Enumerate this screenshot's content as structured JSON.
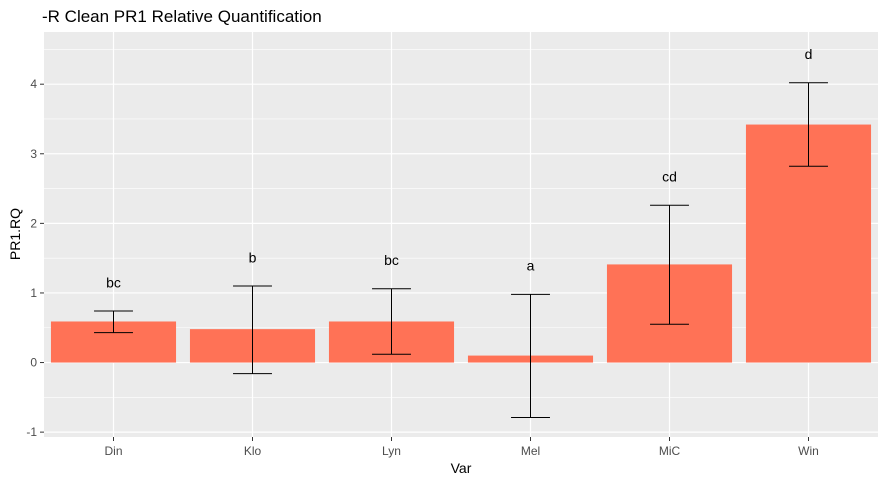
{
  "chart_data": {
    "type": "bar",
    "title": "-R Clean PR1 Relative Quantification",
    "xlabel": "Var",
    "ylabel": "PR1.RQ",
    "categories": [
      "Din",
      "Klo",
      "Lyn",
      "Mel",
      "MiC",
      "Win"
    ],
    "values": [
      0.59,
      0.48,
      0.59,
      0.1,
      1.41,
      3.42
    ],
    "error_low": [
      0.43,
      -0.16,
      0.12,
      -0.79,
      0.55,
      2.82
    ],
    "error_high": [
      0.74,
      1.1,
      1.06,
      0.98,
      2.26,
      4.02
    ],
    "group_labels": [
      "bc",
      "b",
      "bc",
      "a",
      "cd",
      "d"
    ],
    "yticks": [
      "-1",
      "0",
      "1",
      "2",
      "3",
      "4"
    ],
    "ylim": [
      -1.07,
      4.75
    ],
    "grid": true,
    "legend": "none",
    "colors": {
      "bar": "#ff7256",
      "panel": "#ebebeb",
      "grid": "#ffffff",
      "errorbar": "#000000"
    }
  }
}
